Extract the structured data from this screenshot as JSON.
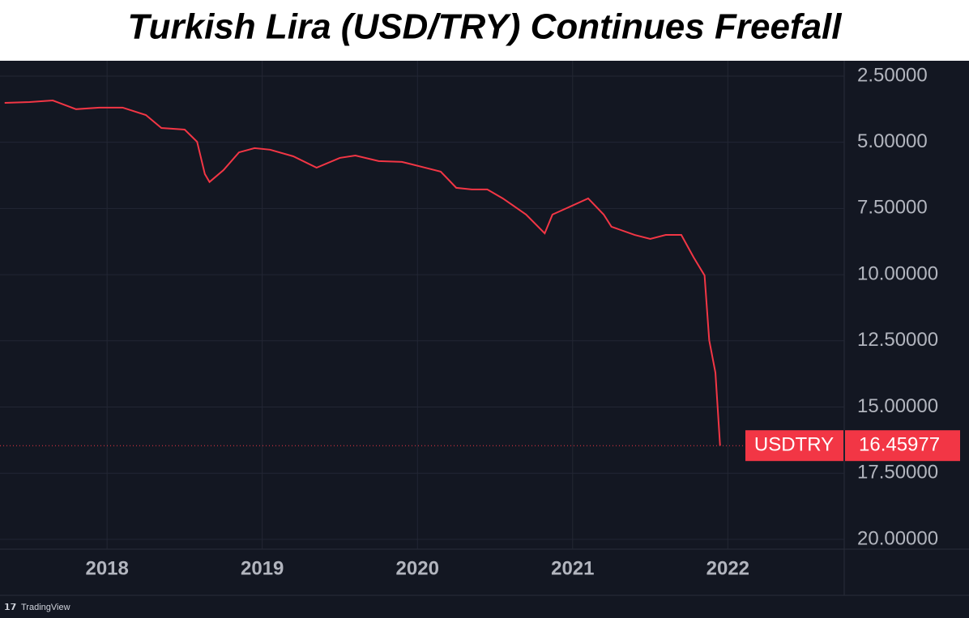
{
  "chart_data": {
    "type": "line",
    "title": "Turkish Lira (USD/TRY) Continues Freefall",
    "x": [
      2017.34,
      2017.5,
      2017.65,
      2017.8,
      2017.95,
      2018.1,
      2018.25,
      2018.35,
      2018.5,
      2018.58,
      2018.63,
      2018.66,
      2018.75,
      2018.85,
      2018.95,
      2019.05,
      2019.2,
      2019.35,
      2019.5,
      2019.6,
      2019.75,
      2019.9,
      2020.05,
      2020.15,
      2020.25,
      2020.35,
      2020.45,
      2020.55,
      2020.7,
      2020.82,
      2020.87,
      2020.95,
      2021.1,
      2021.2,
      2021.25,
      2021.4,
      2021.5,
      2021.6,
      2021.7,
      2021.78,
      2021.85,
      2021.88,
      2021.92,
      2021.95
    ],
    "series": [
      {
        "name": "USDTRY",
        "color": "#f23645",
        "values": [
          3.51,
          3.48,
          3.42,
          3.75,
          3.69,
          3.69,
          3.97,
          4.46,
          4.52,
          4.98,
          6.2,
          6.5,
          6.05,
          5.38,
          5.22,
          5.28,
          5.53,
          5.96,
          5.59,
          5.5,
          5.71,
          5.74,
          5.96,
          6.11,
          6.72,
          6.78,
          6.78,
          7.12,
          7.73,
          8.44,
          7.73,
          7.52,
          7.12,
          7.73,
          8.19,
          8.5,
          8.65,
          8.5,
          8.5,
          9.35,
          10.03,
          12.48,
          13.7,
          16.46
        ]
      }
    ],
    "xlim": [
      2017.31,
      2022.75
    ],
    "xticks": [
      2018,
      2019,
      2020,
      2021,
      2022
    ],
    "ylim": [
      1.92,
      20.37
    ],
    "y_inverted": true,
    "yticks": [
      {
        "value": 2.5,
        "label": "2.50000"
      },
      {
        "value": 5,
        "label": "5.00000"
      },
      {
        "value": 7.5,
        "label": "7.50000"
      },
      {
        "value": 10,
        "label": "10.00000"
      },
      {
        "value": 12.5,
        "label": "12.50000"
      },
      {
        "value": 15,
        "label": "15.00000"
      },
      {
        "value": 17.5,
        "label": "17.50000"
      },
      {
        "value": 20,
        "label": "20.00000"
      }
    ],
    "grid": true,
    "last_price": {
      "label": "USDTRY",
      "value": 16.45977,
      "color": "#f23645"
    },
    "credit": "TradingView"
  }
}
